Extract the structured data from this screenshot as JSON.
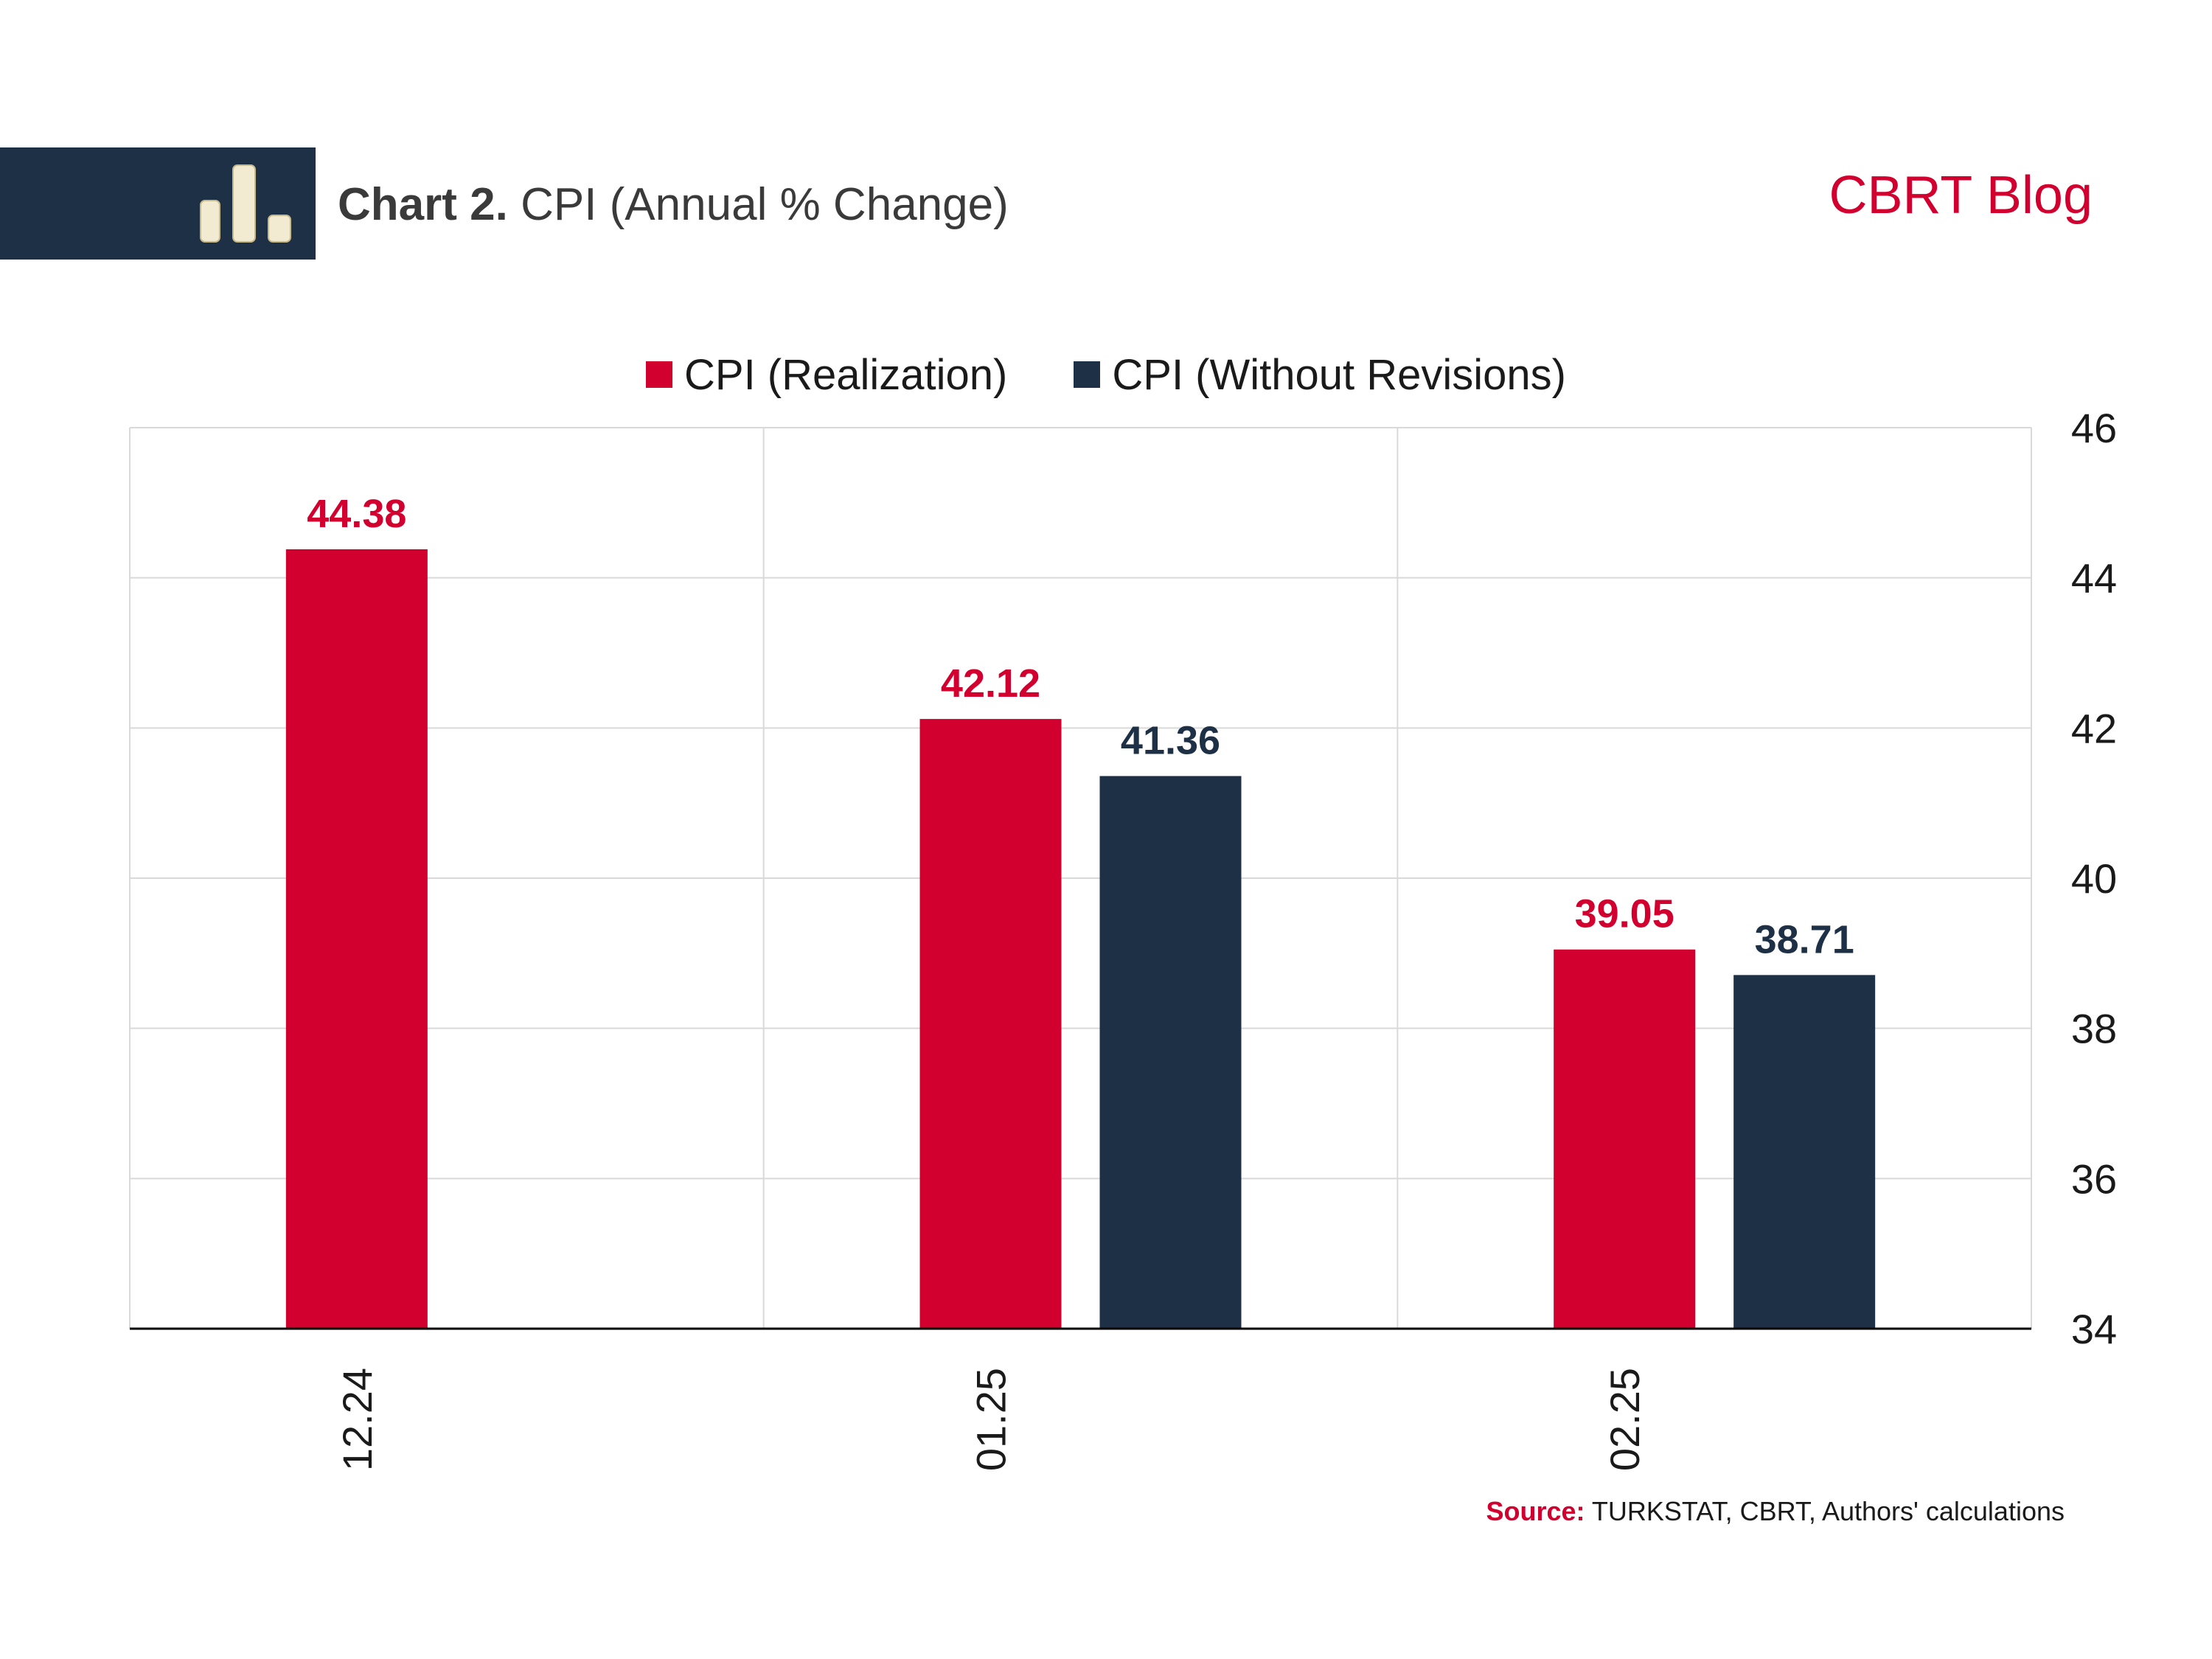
{
  "header": {
    "title_bold": "Chart 2.",
    "title_rest": "CPI (Annual % Change)",
    "brand": "CBRT Blog",
    "icon": "bar-chart-icon"
  },
  "colors": {
    "header_band": "#1e3046",
    "realization": "#d2002e",
    "without_revisions": "#1e3046",
    "grid": "#d9d9d9",
    "axis": "#000000"
  },
  "source": {
    "label": "Source:",
    "text": "TURKSTAT, CBRT, Authors' calculations"
  },
  "chart_data": {
    "type": "bar",
    "categories": [
      "12.24",
      "01.25",
      "02.25"
    ],
    "series": [
      {
        "name": "CPI (Realization)",
        "color": "#d2002e",
        "values": [
          44.38,
          42.12,
          39.05
        ]
      },
      {
        "name": "CPI (Without Revisions)",
        "color": "#1e3046",
        "values": [
          null,
          41.36,
          38.71
        ]
      }
    ],
    "ylim": [
      34,
      46
    ],
    "yticks": [
      34,
      36,
      38,
      40,
      42,
      44,
      46
    ],
    "y_axis_side": "right",
    "x_tick_rotation": "vertical",
    "grid": true,
    "legend": "top-center",
    "data_labels": true
  }
}
